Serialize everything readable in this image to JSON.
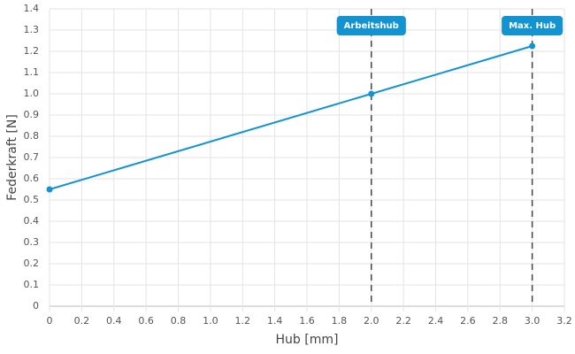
{
  "chart_data": {
    "type": "line",
    "x_label": "Hub [mm]",
    "y_label": "Federkraft [N]",
    "x": [
      0,
      2,
      3
    ],
    "series": [
      {
        "color": "#1493d1",
        "values": [
          0.55,
          1.0,
          1.225
        ]
      }
    ],
    "xlim": [
      0,
      3.2
    ],
    "xticks": [
      0,
      0.2,
      0.4,
      0.6,
      0.8,
      {
        "value": 1,
        "label": "1.0"
      },
      1.2,
      1.4,
      1.6,
      1.8,
      {
        "value": 2,
        "label": "2.0"
      },
      2.2,
      2.4,
      2.6,
      2.8,
      {
        "value": 3,
        "label": "3.0"
      },
      3.2
    ],
    "ylim": [
      0,
      1.4
    ],
    "yticks": [
      0,
      0.1,
      0.2,
      0.3,
      0.4,
      0.5,
      0.6,
      0.7,
      0.8,
      0.9,
      {
        "value": 1,
        "label": "1.0"
      },
      1.1,
      1.2,
      1.3,
      1.4
    ],
    "grid": true,
    "annotations": [
      {
        "x": 2,
        "label": "Arbeitshub"
      },
      {
        "x": 3,
        "label": "Max. Hub"
      }
    ]
  }
}
